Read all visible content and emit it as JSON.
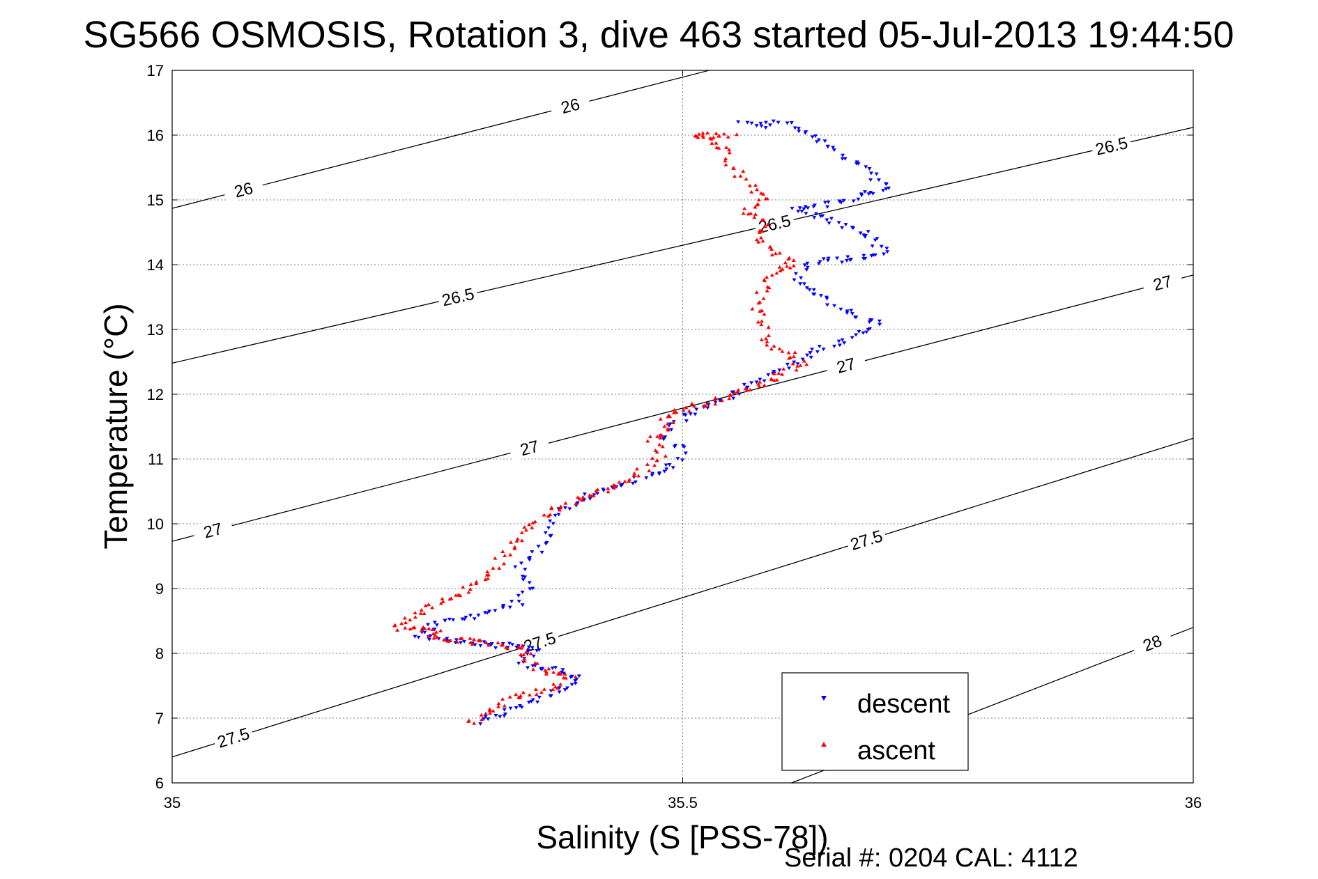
{
  "chart_data": {
    "type": "scatter",
    "title": "SG566 OSMOSIS, Rotation 3, dive 463 started 05-Jul-2013 19:44:50",
    "xlabel": "Salinity (S [PSS-78])",
    "ylabel": "Temperature (°C)",
    "xlim": [
      35,
      36
    ],
    "ylim": [
      6,
      17
    ],
    "x_ticks": [
      "35",
      "35.5",
      "36"
    ],
    "x_tick_values": [
      35,
      35.5,
      36
    ],
    "y_ticks": [
      "6",
      "7",
      "8",
      "9",
      "10",
      "11",
      "12",
      "13",
      "14",
      "15",
      "16",
      "17"
    ],
    "y_tick_values": [
      6,
      7,
      8,
      9,
      10,
      11,
      12,
      13,
      14,
      15,
      16,
      17
    ],
    "grid": true,
    "legend_position": "bottom-right",
    "density_contours": [
      {
        "level": "26",
        "t_at_s35": 14.87,
        "t_at_s36": 18.92,
        "labels": [
          {
            "s": 35.07,
            "t": 15.1
          },
          {
            "s": 35.39,
            "t": 16.2
          }
        ]
      },
      {
        "level": "26.5",
        "t_at_s35": 12.48,
        "t_at_s36": 16.12,
        "labels": [
          {
            "s": 35.28,
            "t": 13.4
          },
          {
            "s": 35.92,
            "t": 15.7
          },
          {
            "s": 35.59,
            "t": 14.6
          }
        ]
      },
      {
        "level": "27",
        "t_at_s35": 9.73,
        "t_at_s36": 13.84,
        "labels": [
          {
            "s": 35.04,
            "t": 9.9
          },
          {
            "s": 35.35,
            "t": 11.2
          },
          {
            "s": 35.66,
            "t": 12.5
          },
          {
            "s": 35.97,
            "t": 13.7
          }
        ]
      },
      {
        "level": "27.5",
        "t_at_s35": 6.4,
        "t_at_s36": 11.32,
        "labels": [
          {
            "s": 35.06,
            "t": 6.7
          },
          {
            "s": 35.36,
            "t": 8.3
          },
          {
            "s": 35.68,
            "t": 9.8
          }
        ]
      },
      {
        "level": "28",
        "t_at_s35": 2.3,
        "t_at_s36": 8.4,
        "labels": [
          {
            "s": 35.96,
            "t": 8.1
          }
        ]
      }
    ],
    "series": [
      {
        "name": "descent",
        "color": "#0000ff",
        "marker": "triangle-down",
        "path": [
          [
            35.3,
            6.93
          ],
          [
            35.32,
            7.05
          ],
          [
            35.35,
            7.25
          ],
          [
            35.38,
            7.45
          ],
          [
            35.4,
            7.62
          ],
          [
            35.38,
            7.75
          ],
          [
            35.35,
            7.78
          ],
          [
            35.34,
            7.9
          ],
          [
            35.36,
            8.05
          ],
          [
            35.34,
            8.1
          ],
          [
            35.3,
            8.15
          ],
          [
            35.27,
            8.2
          ],
          [
            35.24,
            8.3
          ],
          [
            35.26,
            8.45
          ],
          [
            35.3,
            8.6
          ],
          [
            35.34,
            8.8
          ],
          [
            35.35,
            9.0
          ],
          [
            35.34,
            9.3
          ],
          [
            35.36,
            9.6
          ],
          [
            35.37,
            9.9
          ],
          [
            35.38,
            10.2
          ],
          [
            35.42,
            10.5
          ],
          [
            35.46,
            10.7
          ],
          [
            35.49,
            10.9
          ],
          [
            35.5,
            11.15
          ],
          [
            35.48,
            11.35
          ],
          [
            35.49,
            11.55
          ],
          [
            35.51,
            11.7
          ],
          [
            35.53,
            11.85
          ],
          [
            35.56,
            12.1
          ],
          [
            35.6,
            12.4
          ],
          [
            35.62,
            12.6
          ],
          [
            35.66,
            12.85
          ],
          [
            35.69,
            13.1
          ],
          [
            35.66,
            13.3
          ],
          [
            35.63,
            13.55
          ],
          [
            35.61,
            13.8
          ],
          [
            35.63,
            14.05
          ],
          [
            35.67,
            14.1
          ],
          [
            35.7,
            14.2
          ],
          [
            35.68,
            14.45
          ],
          [
            35.64,
            14.7
          ],
          [
            35.61,
            14.85
          ],
          [
            35.66,
            15.0
          ],
          [
            35.7,
            15.2
          ],
          [
            35.64,
            15.9
          ],
          [
            35.6,
            16.2
          ],
          [
            35.58,
            16.15
          ],
          [
            35.56,
            16.2
          ]
        ],
        "count": 380
      },
      {
        "name": "ascent",
        "color": "#ff0000",
        "marker": "triangle-up",
        "path": [
          [
            35.29,
            6.92
          ],
          [
            35.31,
            7.1
          ],
          [
            35.33,
            7.3
          ],
          [
            35.37,
            7.45
          ],
          [
            35.39,
            7.65
          ],
          [
            35.36,
            7.75
          ],
          [
            35.34,
            7.95
          ],
          [
            35.35,
            8.05
          ],
          [
            35.32,
            8.15
          ],
          [
            35.28,
            8.2
          ],
          [
            35.25,
            8.25
          ],
          [
            35.26,
            8.35
          ],
          [
            35.22,
            8.4
          ],
          [
            35.25,
            8.7
          ],
          [
            35.28,
            8.9
          ],
          [
            35.31,
            9.2
          ],
          [
            35.33,
            9.6
          ],
          [
            35.35,
            9.9
          ],
          [
            35.37,
            10.2
          ],
          [
            35.41,
            10.45
          ],
          [
            35.45,
            10.7
          ],
          [
            35.47,
            10.95
          ],
          [
            35.48,
            11.1
          ],
          [
            35.47,
            11.3
          ],
          [
            35.49,
            11.45
          ],
          [
            35.48,
            11.65
          ],
          [
            35.51,
            11.8
          ],
          [
            35.55,
            12.0
          ],
          [
            35.59,
            12.25
          ],
          [
            35.62,
            12.5
          ],
          [
            35.6,
            12.65
          ],
          [
            35.58,
            12.85
          ],
          [
            35.58,
            13.1
          ],
          [
            35.57,
            13.4
          ],
          [
            35.58,
            13.65
          ],
          [
            35.59,
            13.9
          ],
          [
            35.61,
            14.0
          ],
          [
            35.59,
            14.2
          ],
          [
            35.57,
            14.45
          ],
          [
            35.58,
            14.65
          ],
          [
            35.56,
            14.8
          ],
          [
            35.58,
            15.0
          ],
          [
            35.56,
            15.3
          ],
          [
            35.55,
            15.5
          ],
          [
            35.54,
            15.8
          ],
          [
            35.51,
            16.0
          ],
          [
            35.55,
            16.0
          ]
        ],
        "count": 360
      }
    ]
  },
  "legend": {
    "descent_label": "descent",
    "ascent_label": "ascent"
  },
  "footer": {
    "serial_text": "Serial #: 0204  CAL: 4112"
  }
}
